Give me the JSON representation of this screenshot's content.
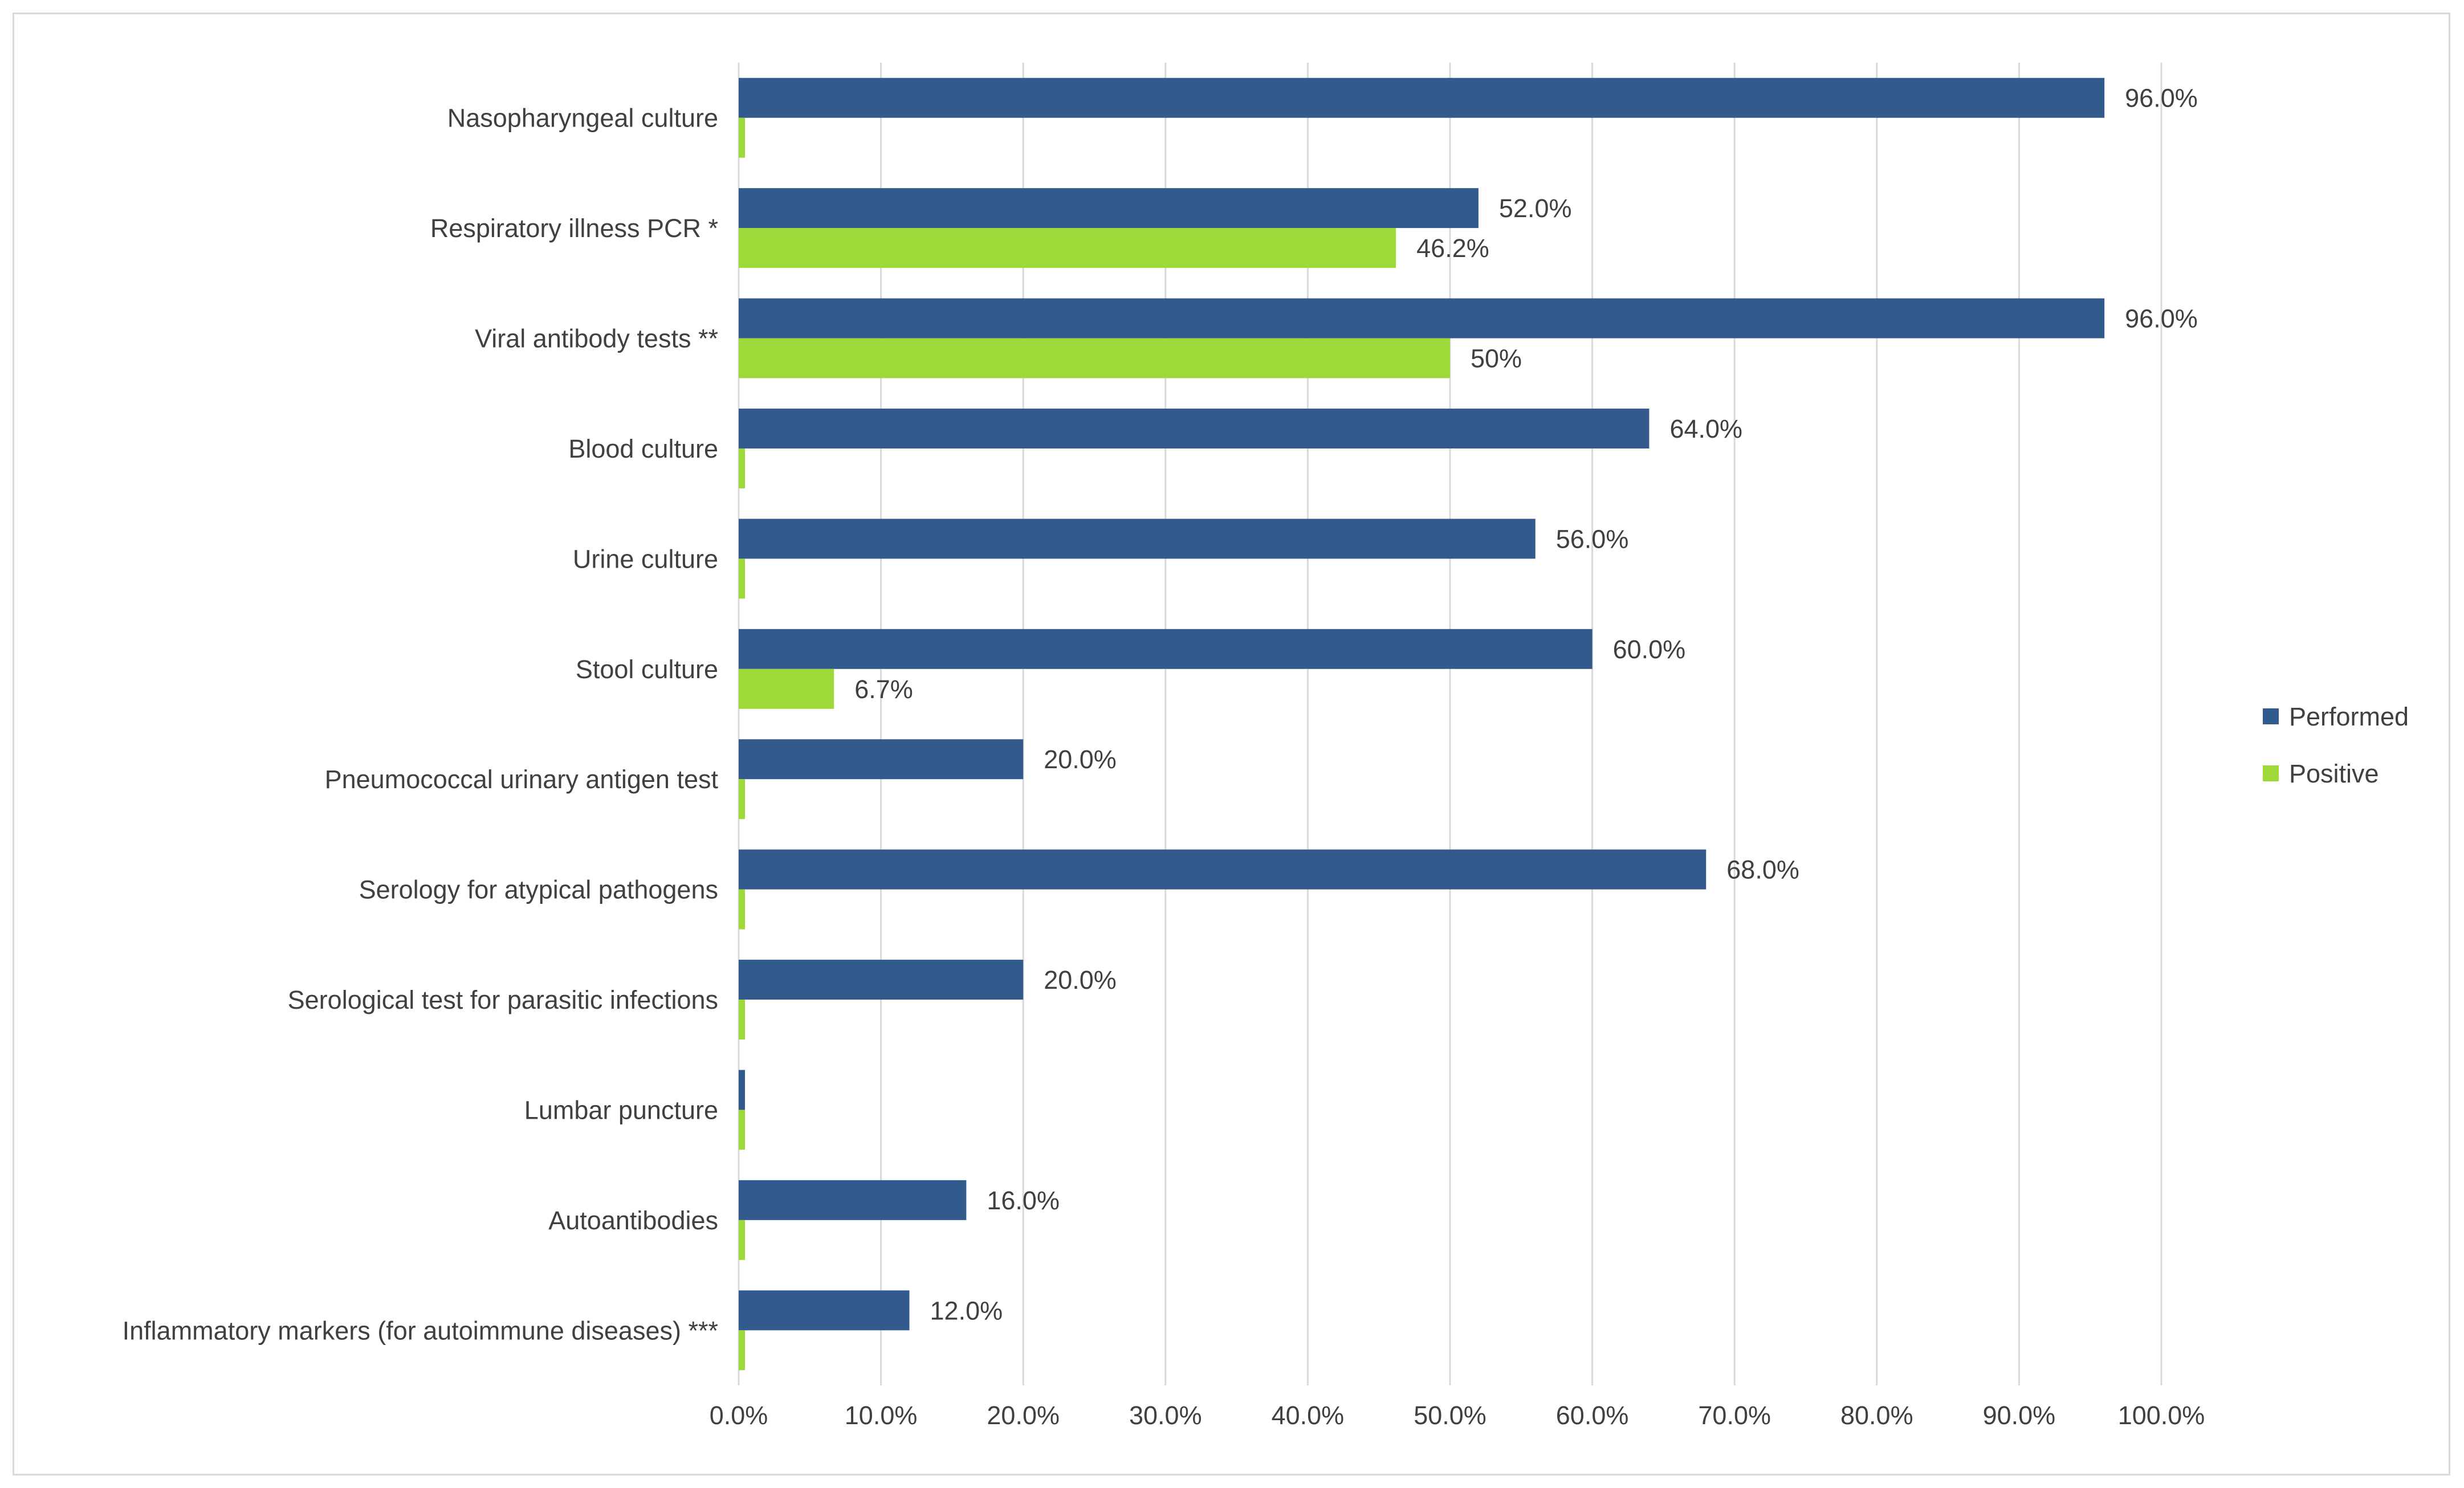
{
  "chart_data": {
    "type": "bar",
    "orientation": "horizontal",
    "title": "",
    "xlabel": "",
    "ylabel": "",
    "xlim": [
      0,
      100
    ],
    "grid": true,
    "legend_position": "right",
    "categories": [
      "Nasopharyngeal culture",
      "Respiratory illness PCR *",
      "Viral antibody tests **",
      "Blood culture",
      "Urine culture",
      "Stool culture",
      "Pneumococcal urinary antigen test",
      "Serology for atypical pathogens",
      "Serological test for parasitic infections",
      "Lumbar puncture",
      "Autoantibodies",
      "Inflammatory markers (for autoimmune diseases) ***"
    ],
    "ticks": [
      "0.0%",
      "10.0%",
      "20.0%",
      "30.0%",
      "40.0%",
      "50.0%",
      "60.0%",
      "70.0%",
      "80.0%",
      "90.0%",
      "100.0%"
    ],
    "series": [
      {
        "name": "Performed",
        "color": "#335a8c",
        "values": [
          96.0,
          52.0,
          96.0,
          64.0,
          56.0,
          60.0,
          20.0,
          68.0,
          20.0,
          0,
          16.0,
          12.0
        ],
        "labels": [
          "96.0%",
          "52.0%",
          "96.0%",
          "64.0%",
          "56.0%",
          "60.0%",
          "20.0%",
          "68.0%",
          "20.0%",
          "",
          "16.0%",
          "12.0%"
        ]
      },
      {
        "name": "Positive",
        "color": "#9ed93a",
        "values": [
          0,
          46.2,
          50,
          0,
          0,
          6.7,
          0,
          0,
          0,
          0,
          0,
          0
        ],
        "labels": [
          "",
          "46.2%",
          "50%",
          "",
          "",
          "6.7%",
          "",
          "",
          "",
          "",
          "",
          ""
        ]
      }
    ]
  }
}
